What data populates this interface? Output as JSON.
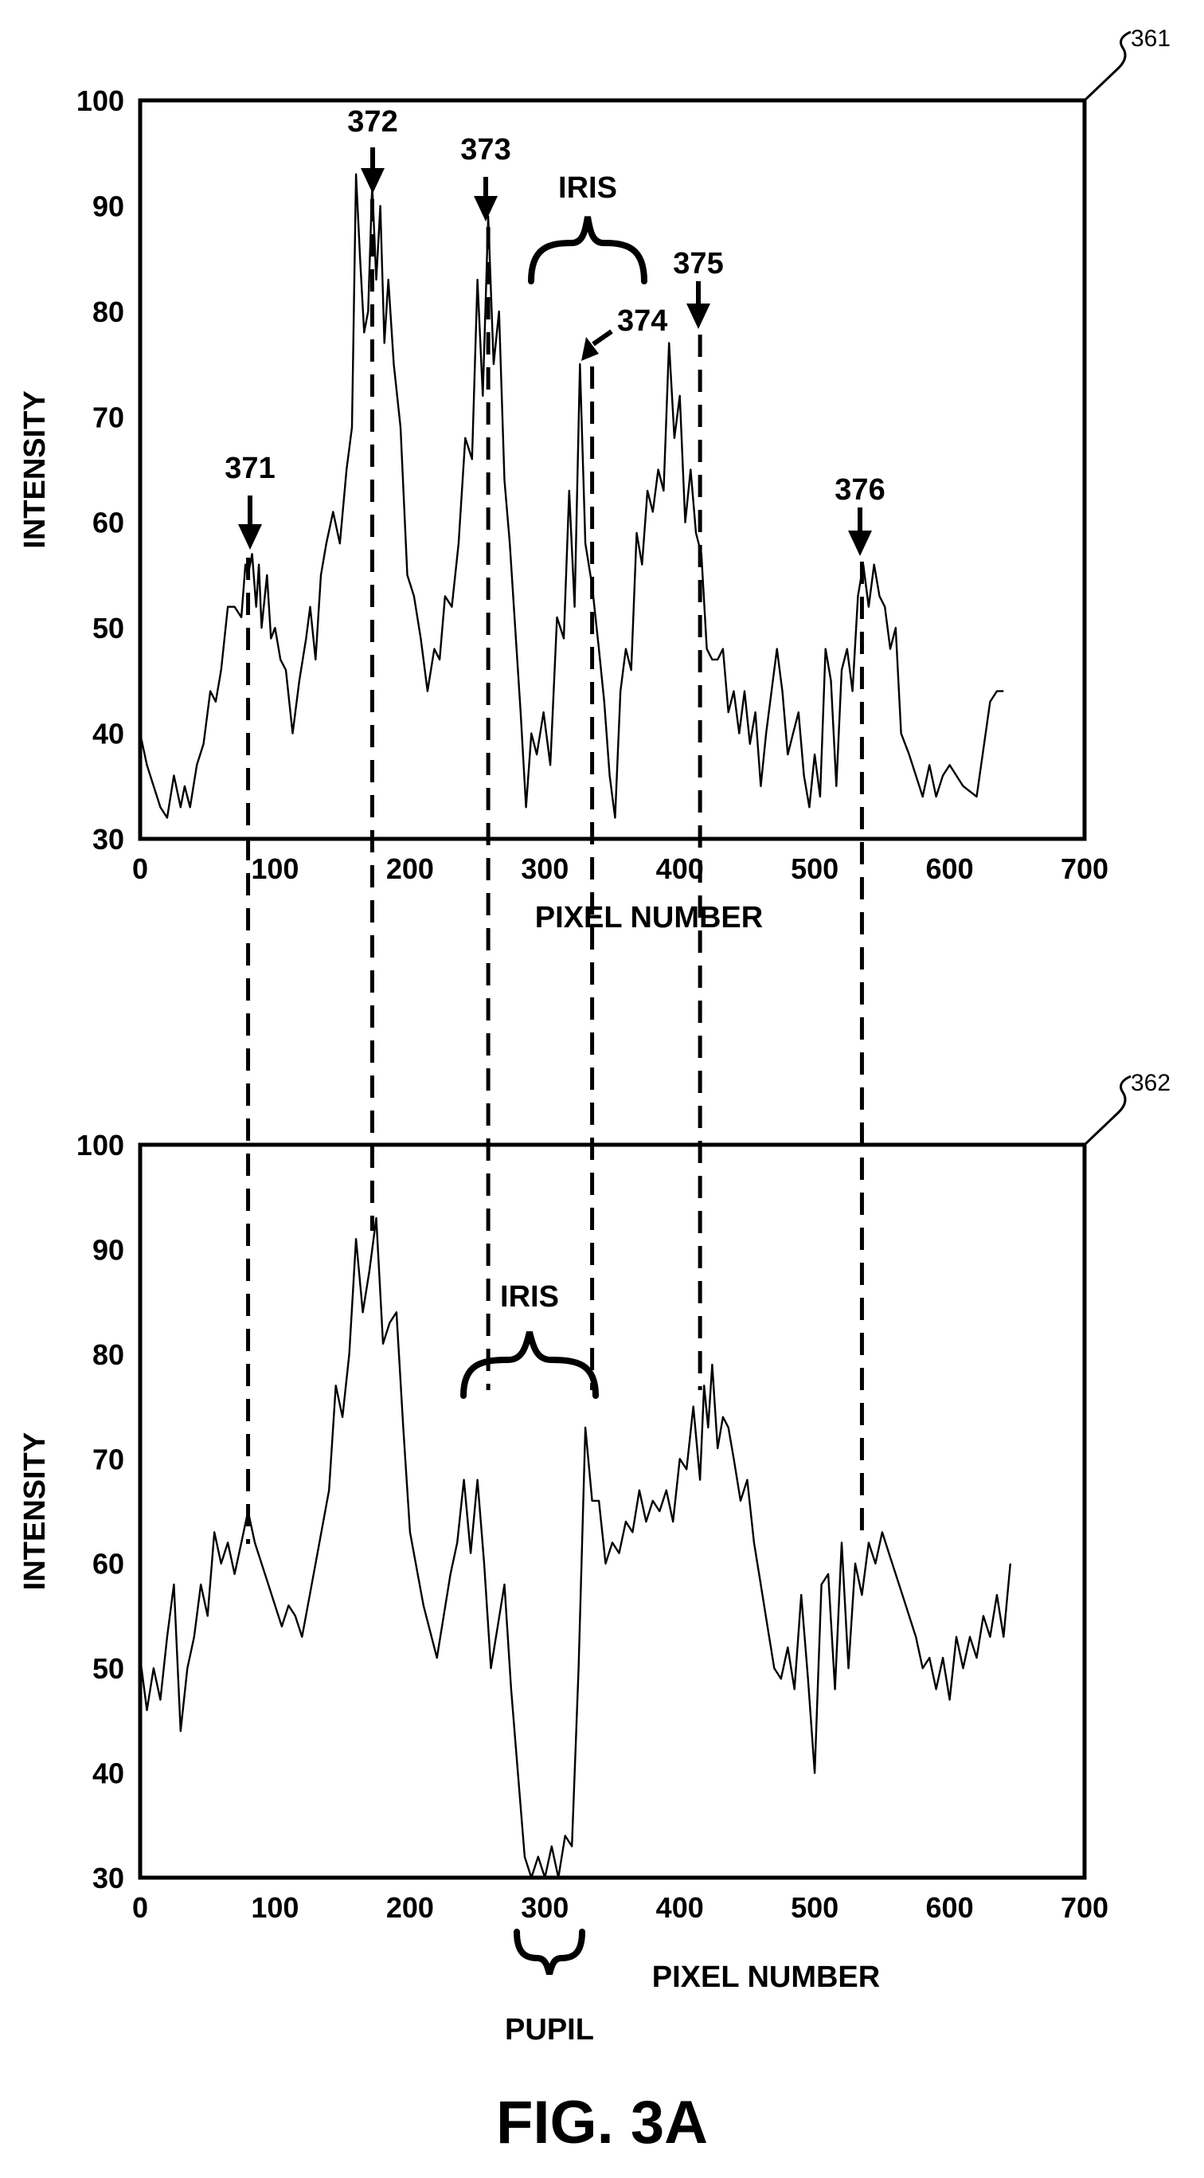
{
  "figure_label": "FIG. 3A",
  "colors": {
    "line": "#000000",
    "background": "#ffffff"
  },
  "chart_data": [
    {
      "type": "line",
      "ref": "361",
      "xlabel": "PIXEL NUMBER",
      "ylabel": "INTENSITY",
      "xlim": [
        0,
        700
      ],
      "ylim": [
        30,
        100
      ],
      "xticks": [
        0,
        100,
        200,
        300,
        400,
        500,
        600,
        700
      ],
      "yticks": [
        30,
        40,
        50,
        60,
        70,
        80,
        90,
        100
      ],
      "series": [
        {
          "x": [
            0,
            5,
            10,
            15,
            20,
            25,
            30,
            33,
            37,
            42,
            47,
            52,
            56,
            60,
            65,
            70,
            75,
            78,
            80,
            83,
            86,
            88,
            90,
            94,
            97,
            100,
            104,
            108,
            113,
            118,
            123,
            126,
            130,
            134,
            138,
            143,
            148,
            153,
            157,
            160,
            163,
            166,
            169,
            172,
            175,
            178,
            181,
            184,
            188,
            193,
            198,
            203,
            208,
            213,
            218,
            222,
            226,
            231,
            236,
            241,
            246,
            250,
            254,
            258,
            262,
            266,
            270,
            274,
            278,
            282,
            286,
            290,
            294,
            299,
            304,
            309,
            314,
            318,
            322,
            326,
            330,
            335,
            340,
            344,
            348,
            352,
            356,
            360,
            364,
            368,
            372,
            376,
            380,
            384,
            388,
            392,
            396,
            400,
            404,
            408,
            412,
            416,
            420,
            424,
            428,
            432,
            436,
            440,
            444,
            448,
            452,
            456,
            460,
            464,
            468,
            472,
            476,
            480,
            484,
            488,
            492,
            496,
            500,
            504,
            508,
            512,
            516,
            520,
            524,
            528,
            532,
            536,
            540,
            544,
            548,
            552,
            556,
            560,
            564,
            570,
            575,
            580,
            585,
            590,
            595,
            600,
            605,
            610,
            620,
            630,
            635,
            640
          ],
          "y": [
            40,
            37,
            35,
            33,
            32,
            36,
            33,
            35,
            33,
            37,
            39,
            44,
            43,
            46,
            52,
            52,
            51,
            56,
            55,
            57,
            52,
            56,
            50,
            55,
            49,
            50,
            47,
            46,
            40,
            45,
            49,
            52,
            47,
            55,
            58,
            61,
            58,
            65,
            69,
            93,
            85,
            78,
            80,
            92,
            83,
            90,
            77,
            83,
            75,
            69,
            55,
            53,
            49,
            44,
            48,
            47,
            53,
            52,
            58,
            68,
            66,
            83,
            72,
            89,
            75,
            80,
            64,
            58,
            50,
            42,
            33,
            40,
            38,
            42,
            37,
            51,
            49,
            63,
            52,
            75,
            58,
            54,
            48,
            43,
            36,
            32,
            44,
            48,
            46,
            59,
            56,
            63,
            61,
            65,
            63,
            77,
            68,
            72,
            60,
            65,
            59,
            57,
            48,
            47,
            47,
            48,
            42,
            44,
            40,
            44,
            39,
            42,
            35,
            40,
            44,
            48,
            44,
            38,
            40,
            42,
            36,
            33,
            38,
            34,
            48,
            45,
            35,
            46,
            48,
            44,
            53,
            56,
            52,
            56,
            53,
            52,
            48,
            50,
            40,
            38,
            36,
            34,
            37,
            34,
            36,
            37,
            36,
            35,
            34,
            43,
            44,
            44
          ]
        }
      ],
      "annotations": [
        {
          "label": "371",
          "x": 80
        },
        {
          "label": "372",
          "x": 172
        },
        {
          "label": "373",
          "x": 258
        },
        {
          "label": "374",
          "x": 335
        },
        {
          "label": "375",
          "x": 415
        },
        {
          "label": "376",
          "x": 535
        }
      ],
      "brace_label": "IRIS"
    },
    {
      "type": "line",
      "ref": "362",
      "xlabel": "PIXEL NUMBER",
      "ylabel": "INTENSITY",
      "xlim": [
        0,
        700
      ],
      "ylim": [
        30,
        100
      ],
      "xticks": [
        0,
        100,
        200,
        300,
        400,
        500,
        600,
        700
      ],
      "yticks": [
        30,
        40,
        50,
        60,
        70,
        80,
        90,
        100
      ],
      "series": [
        {
          "x": [
            0,
            5,
            10,
            15,
            20,
            25,
            30,
            35,
            40,
            45,
            50,
            55,
            60,
            65,
            70,
            75,
            80,
            85,
            90,
            95,
            100,
            105,
            110,
            115,
            120,
            130,
            140,
            145,
            150,
            155,
            160,
            165,
            170,
            175,
            180,
            185,
            190,
            195,
            200,
            210,
            220,
            225,
            230,
            235,
            240,
            245,
            250,
            255,
            260,
            265,
            270,
            275,
            280,
            285,
            290,
            295,
            300,
            305,
            310,
            315,
            320,
            325,
            330,
            335,
            340,
            345,
            350,
            355,
            360,
            365,
            370,
            375,
            380,
            385,
            390,
            395,
            400,
            405,
            410,
            415,
            418,
            421,
            424,
            428,
            432,
            436,
            440,
            445,
            450,
            455,
            460,
            465,
            470,
            475,
            480,
            485,
            490,
            495,
            500,
            505,
            510,
            515,
            520,
            525,
            530,
            535,
            540,
            545,
            550,
            555,
            560,
            565,
            570,
            575,
            580,
            585,
            590,
            595,
            600,
            605,
            610,
            615,
            620,
            625,
            630,
            635,
            640,
            645
          ],
          "y": [
            51,
            46,
            50,
            47,
            53,
            58,
            44,
            50,
            53,
            58,
            55,
            63,
            60,
            62,
            59,
            62,
            65,
            62,
            60,
            58,
            56,
            54,
            56,
            55,
            53,
            60,
            67,
            77,
            74,
            80,
            91,
            84,
            88,
            93,
            81,
            83,
            84,
            73,
            63,
            56,
            51,
            55,
            59,
            62,
            68,
            61,
            68,
            60,
            50,
            54,
            58,
            48,
            40,
            32,
            30,
            32,
            30,
            33,
            30,
            34,
            33,
            50,
            73,
            66,
            66,
            60,
            62,
            61,
            64,
            63,
            67,
            64,
            66,
            65,
            67,
            64,
            70,
            69,
            75,
            68,
            77,
            73,
            79,
            71,
            74,
            73,
            70,
            66,
            68,
            62,
            58,
            54,
            50,
            49,
            52,
            48,
            57,
            49,
            40,
            58,
            59,
            48,
            62,
            50,
            60,
            57,
            62,
            60,
            63,
            61,
            59,
            57,
            55,
            53,
            50,
            51,
            48,
            51,
            47,
            53,
            50,
            53,
            51,
            55,
            53,
            57,
            53,
            60
          ]
        }
      ],
      "brace_label": "IRIS",
      "brace_label_below": "PUPIL"
    }
  ]
}
